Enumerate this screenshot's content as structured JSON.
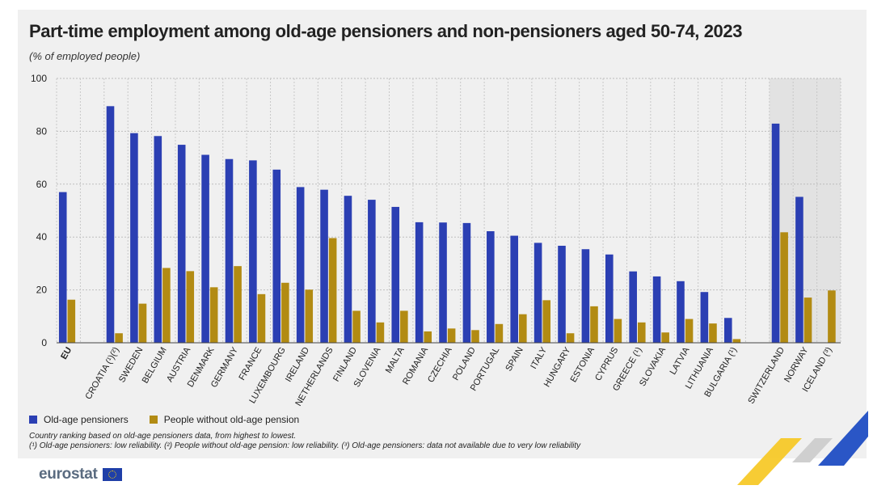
{
  "header": {
    "title": "Part-time employment among old-age pensioners and non-pensioners aged 50-74, 2023",
    "subtitle": "(% of employed people)"
  },
  "colors": {
    "pensioners": "#2b3fb3",
    "non_pensioners": "#b28b13",
    "highlight_band": "#e2e2e2",
    "panel_bg": "#f0f0f0"
  },
  "legend": {
    "pensioners_label": "Old-age pensioners",
    "non_pensioners_label": "People without old-age pension"
  },
  "notes": {
    "line1": "Country ranking based on old-age pensioners data, from highest to lowest.",
    "line2": "(¹) Old-age pensioners: low reliability. (²) People without old-age pension: low reliability. (³) Old-age pensioners: data not available due to very low reliability"
  },
  "footer": {
    "brand": "eurostat"
  },
  "chart_data": {
    "type": "bar",
    "ylim": [
      0,
      100
    ],
    "yticks": [
      0,
      20,
      40,
      60,
      80,
      100
    ],
    "grid": true,
    "legend_position": "bottom-left",
    "categories": [
      "EU",
      "CROATIA (¹)(²)",
      "SWEDEN",
      "BELGIUM",
      "AUSTRIA",
      "DENMARK",
      "GERMANY",
      "FRANCE",
      "LUXEMBOURG",
      "IRELAND",
      "NETHERLANDS",
      "FINLAND",
      "SLOVENIA",
      "MALTA",
      "ROMANIA",
      "CZECHIA",
      "POLAND",
      "PORTUGAL",
      "SPAIN",
      "ITALY",
      "HUNGARY",
      "ESTONIA",
      "CYPRUS",
      "GREECE (¹)",
      "SLOVAKIA",
      "LATVIA",
      "LITHUANIA",
      "BULGARIA (¹)",
      "SWITZERLAND",
      "NORWAY",
      "ICELAND (³)"
    ],
    "series": [
      {
        "name": "Old-age pensioners",
        "values": [
          57.0,
          89.5,
          79.3,
          78.2,
          74.9,
          71.1,
          69.5,
          69.0,
          65.5,
          58.9,
          57.9,
          55.6,
          54.1,
          51.4,
          45.6,
          45.5,
          45.3,
          42.2,
          40.5,
          37.8,
          36.7,
          35.4,
          33.4,
          27.0,
          25.1,
          23.3,
          19.2,
          9.4,
          82.9,
          55.2,
          null
        ]
      },
      {
        "name": "People without old-age pension",
        "values": [
          16.3,
          3.6,
          14.8,
          28.3,
          27.1,
          21.0,
          29.0,
          18.4,
          22.7,
          20.1,
          39.6,
          12.1,
          7.7,
          12.1,
          4.3,
          5.4,
          4.8,
          7.1,
          10.8,
          16.1,
          3.6,
          13.8,
          9.0,
          7.7,
          3.9,
          9.0,
          7.3,
          1.4,
          41.8,
          17.1,
          19.8
        ]
      }
    ],
    "groups": [
      {
        "categories": [
          "EU"
        ]
      },
      {
        "categories": [
          "CROATIA (¹)(²)",
          "SWEDEN",
          "BELGIUM",
          "AUSTRIA",
          "DENMARK",
          "GERMANY",
          "FRANCE",
          "LUXEMBOURG",
          "IRELAND",
          "NETHERLANDS",
          "FINLAND",
          "SLOVENIA",
          "MALTA",
          "ROMANIA",
          "CZECHIA",
          "POLAND",
          "PORTUGAL",
          "SPAIN",
          "ITALY",
          "HUNGARY",
          "ESTONIA",
          "CYPRUS",
          "GREECE (¹)",
          "SLOVAKIA",
          "LATVIA",
          "LITHUANIA",
          "BULGARIA (¹)"
        ]
      },
      {
        "categories": [
          "SWITZERLAND",
          "NORWAY",
          "ICELAND (³)"
        ],
        "highlighted": true
      }
    ]
  }
}
